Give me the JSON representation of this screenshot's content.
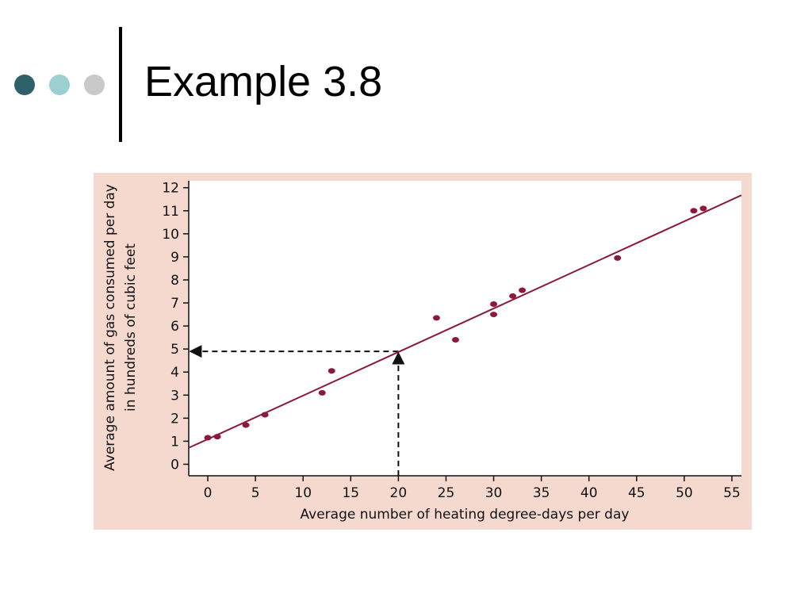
{
  "slide": {
    "title": "Example 3.8",
    "bullet_colors": [
      "#2f6168",
      "#9ccfd0",
      "#c9c9c9"
    ]
  },
  "chart_data": {
    "type": "scatter",
    "xlabel": "Average number of heating degree-days per day",
    "ylabel_line1": "Average amount of gas consumed per day",
    "ylabel_line2": "in hundreds of cubic feet",
    "xlim": [
      -2,
      56
    ],
    "ylim": [
      -0.5,
      12.3
    ],
    "xticks": [
      0,
      5,
      10,
      15,
      20,
      25,
      30,
      35,
      40,
      45,
      50,
      55
    ],
    "yticks": [
      0,
      1,
      2,
      3,
      4,
      5,
      6,
      7,
      8,
      9,
      10,
      11,
      12
    ],
    "points": [
      {
        "x": 0,
        "y": 1.15
      },
      {
        "x": 1,
        "y": 1.2
      },
      {
        "x": 4,
        "y": 1.7
      },
      {
        "x": 6,
        "y": 2.15
      },
      {
        "x": 12,
        "y": 3.1
      },
      {
        "x": 13,
        "y": 4.05
      },
      {
        "x": 24,
        "y": 6.35
      },
      {
        "x": 26,
        "y": 5.4
      },
      {
        "x": 30,
        "y": 6.95
      },
      {
        "x": 30,
        "y": 6.5
      },
      {
        "x": 32,
        "y": 7.3
      },
      {
        "x": 33,
        "y": 7.55
      },
      {
        "x": 43,
        "y": 8.95
      },
      {
        "x": 51,
        "y": 11.0
      },
      {
        "x": 52,
        "y": 11.1
      }
    ],
    "regression_line": {
      "intercept": 1.09,
      "slope": 0.189
    },
    "prediction": {
      "x": 20,
      "y": 4.9
    },
    "colors": {
      "points": "#8b1a3a",
      "line": "#8b1a3a",
      "panel": "#f5d9cf",
      "plot_area": "#ffffff"
    },
    "grid": false
  }
}
